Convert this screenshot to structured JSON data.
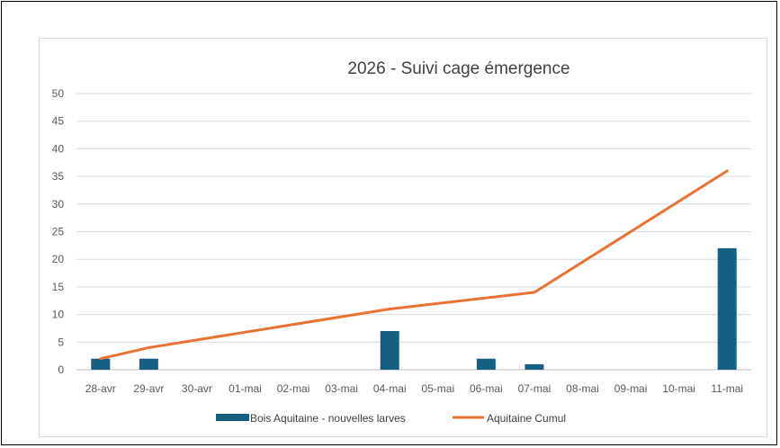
{
  "chart_data": {
    "type": "bar",
    "title": "2026 -  Suivi cage émergence",
    "categories": [
      "28-avr",
      "29-avr",
      "30-avr",
      "01-mai",
      "02-mai",
      "03-mai",
      "04-mai",
      "05-mai",
      "06-mai",
      "07-mai",
      "08-mai",
      "09-mai",
      "10-mai",
      "11-mai"
    ],
    "series": [
      {
        "name": "Bois Aquitaine - nouvelles larves",
        "kind": "bar",
        "color": "#156082",
        "values": [
          2,
          2,
          0,
          0,
          0,
          0,
          7,
          0,
          2,
          1,
          0,
          0,
          0,
          22
        ]
      },
      {
        "name": "Aquitaine Cumul",
        "kind": "line",
        "color": "#e97132",
        "values": [
          2,
          4,
          null,
          null,
          null,
          null,
          11,
          null,
          null,
          14,
          null,
          null,
          null,
          36
        ]
      }
    ],
    "ylim": [
      0,
      50
    ],
    "yticks": [
      0,
      5,
      10,
      15,
      20,
      25,
      30,
      35,
      40,
      45,
      50
    ],
    "grid": true,
    "legend_position": "bottom"
  }
}
